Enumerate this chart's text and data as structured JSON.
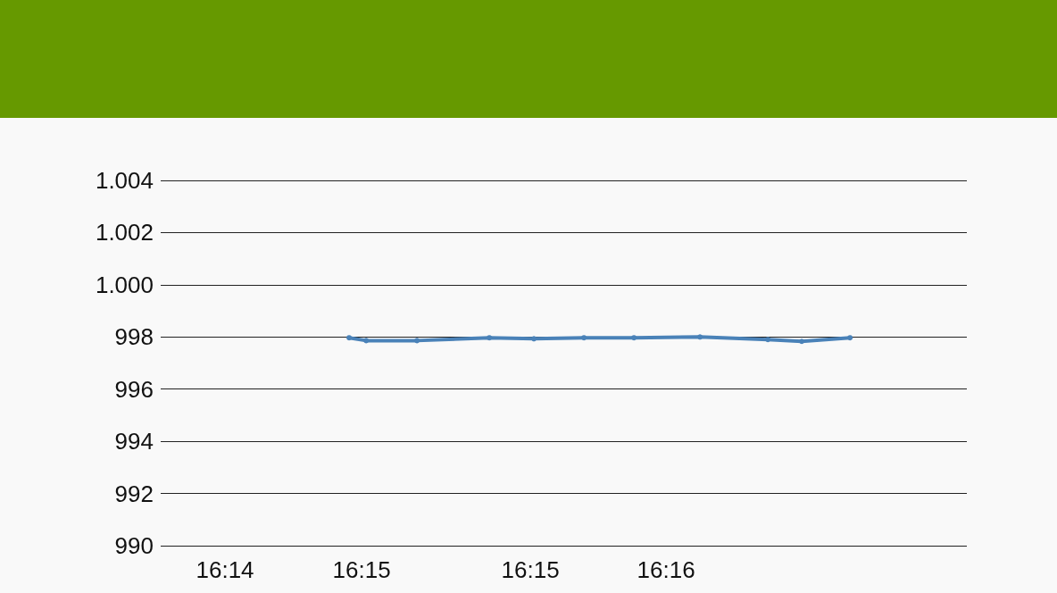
{
  "chart_data": {
    "type": "line",
    "x": [
      16.24271,
      16.244,
      16.24784,
      16.25331,
      16.25668,
      16.26046,
      16.26424,
      16.26923,
      16.27436,
      16.27692,
      16.28057
    ],
    "series": [
      {
        "color": "#4a82b8",
        "values": [
          997.97,
          997.86,
          997.86,
          997.97,
          997.93,
          997.97,
          997.97,
          998.0,
          997.9,
          997.83,
          997.97
        ]
      }
    ],
    "xlim": [
      16.22847,
      16.2894
    ],
    "xticks": [
      {
        "value": 16.23333,
        "label": "16:14"
      },
      {
        "value": 16.24366,
        "label": "16:15"
      },
      {
        "value": 16.25641,
        "label": "16:15"
      },
      {
        "value": 16.26667,
        "label": "16:16"
      }
    ],
    "ylim": [
      990,
      1004
    ],
    "yticks": [
      990,
      992,
      994,
      996,
      998,
      {
        "value": 1000,
        "label": "1.000"
      },
      {
        "value": 1002,
        "label": "1.002"
      },
      {
        "value": 1004,
        "label": "1.004"
      }
    ],
    "grid": "y",
    "marker": "circle",
    "line_style": "solid"
  }
}
